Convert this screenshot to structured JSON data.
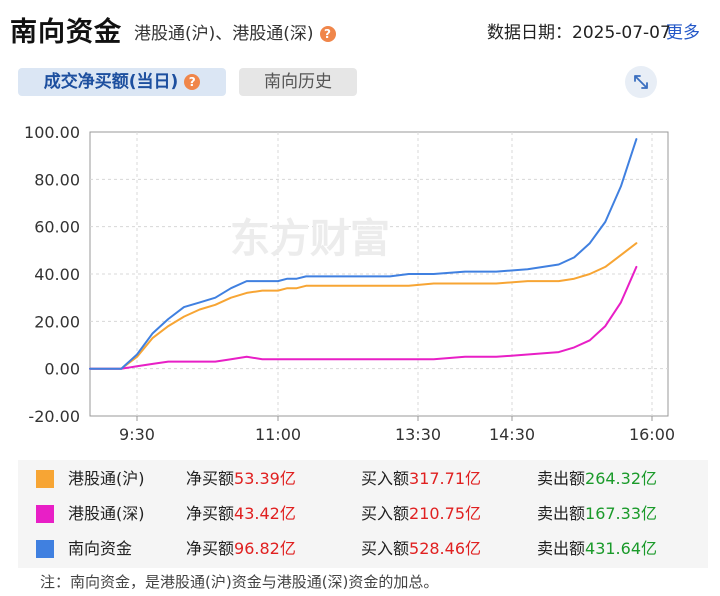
{
  "header": {
    "title": "南向资金",
    "subtitle": "港股通(沪)、港股通(深)",
    "help_icon": "?",
    "date_label": "数据日期：2025-07-07",
    "more_link": "更多"
  },
  "tabs": [
    {
      "label": "成交净买额(当日)",
      "active": true
    },
    {
      "label": "南向历史",
      "active": false
    }
  ],
  "expand_icon": "expand-arrows-icon",
  "watermark": "东方财富",
  "chart_data": {
    "type": "line",
    "yticks": [
      "100.00",
      "80.00",
      "60.00",
      "40.00",
      "20.00",
      "0.00",
      "-20.00"
    ],
    "ylim": [
      -20,
      100
    ],
    "xticks": [
      "9:30",
      "11:00",
      "13:30",
      "14:30",
      "16:00"
    ],
    "grid": true,
    "series": [
      {
        "name": "港股通(沪)",
        "color": "#f7a534",
        "x": [
          "9:00",
          "9:20",
          "9:30",
          "9:40",
          "9:50",
          "10:00",
          "10:10",
          "10:20",
          "10:30",
          "10:40",
          "10:50",
          "11:00",
          "11:10",
          "11:20",
          "11:30",
          "11:40",
          "11:50",
          "12:00",
          "13:00",
          "13:20",
          "13:40",
          "14:00",
          "14:20",
          "14:40",
          "15:00",
          "15:10",
          "15:20",
          "15:30",
          "15:40",
          "15:50"
        ],
        "y": [
          0,
          0,
          5,
          13,
          18,
          22,
          25,
          27,
          30,
          32,
          33,
          33,
          34,
          34,
          35,
          35,
          35,
          35,
          35,
          35,
          36,
          36,
          36,
          37,
          37,
          38,
          40,
          43,
          48,
          53
        ]
      },
      {
        "name": "港股通(深)",
        "color": "#e81fc6",
        "x": [
          "9:00",
          "9:20",
          "9:30",
          "9:40",
          "9:50",
          "10:00",
          "10:10",
          "10:20",
          "10:30",
          "10:40",
          "10:50",
          "11:00",
          "11:10",
          "11:20",
          "11:30",
          "11:40",
          "11:50",
          "12:00",
          "13:00",
          "13:20",
          "13:40",
          "14:00",
          "14:20",
          "14:40",
          "15:00",
          "15:10",
          "15:20",
          "15:30",
          "15:40",
          "15:50"
        ],
        "y": [
          0,
          0,
          1,
          2,
          3,
          3,
          3,
          3,
          4,
          5,
          4,
          4,
          4,
          4,
          4,
          4,
          4,
          4,
          4,
          4,
          4,
          5,
          5,
          6,
          7,
          9,
          12,
          18,
          28,
          43
        ]
      },
      {
        "name": "南向资金",
        "color": "#4080e0",
        "x": [
          "9:00",
          "9:20",
          "9:30",
          "9:40",
          "9:50",
          "10:00",
          "10:10",
          "10:20",
          "10:30",
          "10:40",
          "10:50",
          "11:00",
          "11:10",
          "11:20",
          "11:30",
          "11:40",
          "11:50",
          "12:00",
          "13:00",
          "13:20",
          "13:40",
          "14:00",
          "14:20",
          "14:40",
          "15:00",
          "15:10",
          "15:20",
          "15:30",
          "15:40",
          "15:50"
        ],
        "y": [
          0,
          0,
          6,
          15,
          21,
          26,
          28,
          30,
          34,
          37,
          37,
          37,
          38,
          38,
          39,
          39,
          39,
          39,
          39,
          40,
          40,
          41,
          41,
          42,
          44,
          47,
          53,
          62,
          77,
          97
        ]
      }
    ]
  },
  "legend": [
    {
      "name": "港股通(沪)",
      "color": "#f7a534",
      "net_label": "净买额",
      "net_value": "53.39亿",
      "buy_label": "买入额",
      "buy_value": "317.71亿",
      "sell_label": "卖出额",
      "sell_value": "264.32亿"
    },
    {
      "name": "港股通(深)",
      "color": "#e81fc6",
      "net_label": "净买额",
      "net_value": "43.42亿",
      "buy_label": "买入额",
      "buy_value": "210.75亿",
      "sell_label": "卖出额",
      "sell_value": "167.33亿"
    },
    {
      "name": "南向资金",
      "color": "#4080e0",
      "net_label": "净买额",
      "net_value": "96.82亿",
      "buy_label": "买入额",
      "buy_value": "528.46亿",
      "sell_label": "卖出额",
      "sell_value": "431.64亿"
    }
  ],
  "note": "注：南向资金，是港股通(沪)资金与港股通(深)资金的加总。"
}
